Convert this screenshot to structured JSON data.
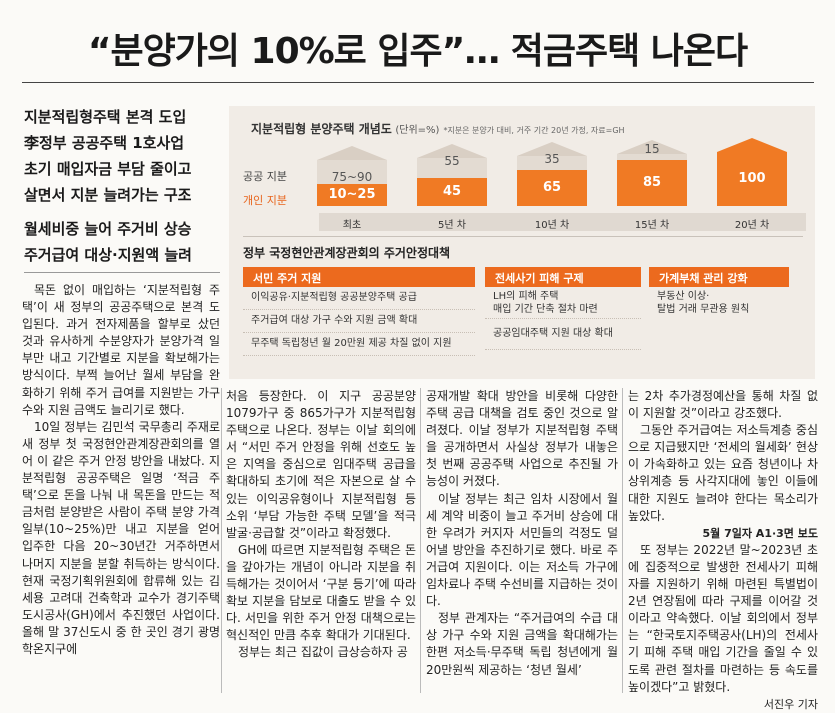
{
  "headline": "“분양가의 10%로 입주”… 적금주택 나온다",
  "subheads": [
    "지분적립형주택 본격 도입",
    "李정부 공공주택 1호사업",
    "초기 매입자금 부담 줄이고",
    "살면서 지분 늘려가는 구조",
    "월세비중 늘어 주거비 상승",
    "주거급여 대상·지원액 늘려"
  ],
  "graphic": {
    "title": "지분적립형 분양주택 개념도",
    "unit": "(단위=%)",
    "note": "*지분은 분양가 대비, 거주 기간 20년 가정, 자료=GH",
    "row_labels": {
      "public": "공공 지분",
      "individual": "개인 지분"
    },
    "stages": [
      {
        "label": "최초",
        "public": "75~90",
        "individual": "10~25"
      },
      {
        "label": "5년 차",
        "public": "55",
        "individual": "45"
      },
      {
        "label": "10년 차",
        "public": "35",
        "individual": "65"
      },
      {
        "label": "15년 차",
        "public": "15",
        "individual": "85"
      },
      {
        "label": "20년 차",
        "public": "",
        "individual": "100"
      }
    ],
    "policy_title": "정부 국정현안관계장관회의 주거안정대책",
    "panels": [
      {
        "header": "서민 주거 지원",
        "items": [
          "이익공유·지분적립형 공공분양주택 공급",
          "주거급여 대상 가구 수와 지원 금액 확대",
          "무주택 독립청년 월 20만원 제공 차질 없이 지원"
        ]
      },
      {
        "header": "전세사기 피해 구제",
        "items": [
          "LH의 피해 주택\n매입 기간 단축 절차 마련",
          "공공임대주택 지원 대상 확대"
        ]
      },
      {
        "header": "가계부채 관리 강화",
        "items": [
          "부동산 이상·\n탈법 거래 무관용 원칙"
        ]
      }
    ]
  },
  "columns": {
    "col1": [
      "목돈 없이 매입하는 ‘지분적립형 주택’이 새 정부의 공공주택으로 본격 도입된다. 과거 전자제품을 할부로 샀던 것과 유사하게 수분양자가 분양가격 일부만 내고 기간별로 지분을 확보해가는 방식이다. 부쩍 늘어난 월세 부담을 완화하기 위해 주거 급여를 지원받는 가구 수와 지원 금액도 늘리기로 했다.",
      "10일 정부는 김민석 국무총리 주재로 새 정부 첫 국정현안관계장관회의를 열어 이 같은 주거 안정 방안을 내놨다. 지분적립형 공공주택은 일명 ‘적금 주택’으로 돈을 나눠 내 목돈을 만드는 적금처럼 분양받은 사람이 주택 분양 가격 일부(10~25%)만 내고 지분을 얻어 입주한 다음 20~30년간 거주하면서 나머지 지분을 분할 취득하는 방식이다. 현재 국정기획위원회에 합류해 있는 김세용 고려대 건축학과 교수가 경기주택도시공사(GH)에서 추진했던 사업이다. 올해 말 37신도시 중 한 곳인 경기 광명학온지구에"
    ],
    "col2": [
      "처음 등장한다. 이 지구 공공분양 1079가구 중 865가구가 지분적립형 주택으로 나온다. 정부는 이날 회의에서 “서민 주거 안정을 위해 선호도 높은 지역을 중심으로 임대주택 공급을 확대하되 초기에 적은 자본으로 살 수 있는 이익공유형이나 지분적립형 등 소위 ‘부담 가능한 주택 모델’을 적극 발굴·공급할 것”이라고 확정했다.",
      "GH에 따르면 지분적립형 주택은 돈을 갚아가는 개념이 아니라 지분을 취득해가는 것이어서 ‘구분 등기’에 따라 확보 지분을 담보로 대출도 받을 수 있다. 서민을 위한 주거 안정 대책으로는 혁신적인 만큼 추후 확대가 기대된다.",
      "정부는 최근 집값이 급상승하자 공"
    ],
    "col3": [
      "공재개발 확대 방안을 비롯해 다양한 주택 공급 대책을 검토 중인 것으로 알려졌다. 이날 정부가 지분적립형 주택을 공개하면서 사실상 정부가 내놓은 첫 번째 공공주택 사업으로 추진될 가능성이 커졌다.",
      "이날 정부는 최근 임차 시장에서 월세 계약 비중이 늘고 주거비 상승에 대한 우려가 커지자 서민들의 걱정도 덜어낼 방안을 추진하기로 했다. 바로 주거급여 지원이다. 이는 저소득 가구에 임차료나 주택 수선비를 지급하는 것이다.",
      "정부 관계자는 “주거급여의 수급 대상 가구 수와 지원 금액을 확대해가는 한편 저소득·무주택 독립 청년에게 월 20만원씩 제공하는 ‘청년 월세’"
    ],
    "col4": [
      "는 2차 추가경정예산을 통해 차질 없이 지원할 것”이라고 강조했다.",
      "그동안 주거급여는 저소득계층 중심으로 지급됐지만 ‘전세의 월세화’ 현상이 가속화하고 있는 요즘 청년이나 차상위계층 등 사각지대에 놓인 이들에 대한 지원도 늘려야 한다는 목소리가 높았다.",
      "또 정부는 2022년 말~2023년 초에 집중적으로 발생한 전세사기 피해자를 지원하기 위해 마련된 특별법이 2년 연장됨에 따라 구제를 이어갈 것이라고 약속했다. 이날 회의에서 정부는 “한국토지주택공사(LH)의 전세사기 피해 주택 매입 기간을 줄일 수 있도록 관련 절차를 마련하는 등 속도를 높이겠다”고 밝혔다."
    ],
    "related": "5월 7일자 A1·3면 보도",
    "byline": "서진우 기자"
  }
}
